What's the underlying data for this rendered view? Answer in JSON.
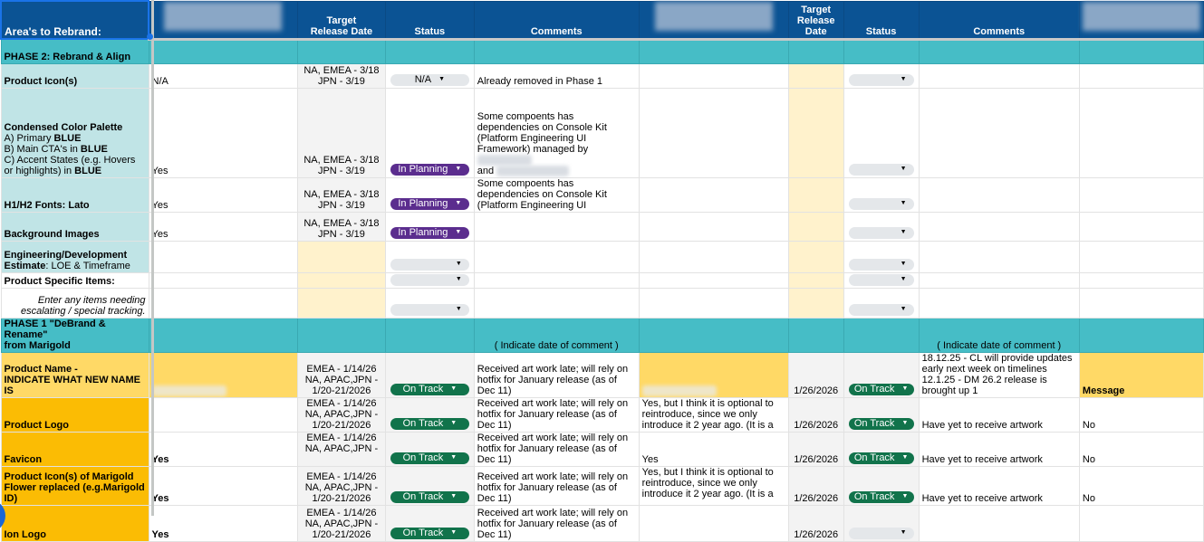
{
  "colors": {
    "header": "#0b5394",
    "phase": "#46bdc6",
    "area": "#c0e4e6",
    "in_planning": "#5b2d8e",
    "on_track": "#11734b",
    "na": "#e4e7ea",
    "yellow": "#ffd966",
    "orange": "#fbbc04",
    "light_yellow": "#fff2cc"
  },
  "header": [
    {
      "text": "Area's to Rebrand:"
    },
    {
      "blurred": true
    },
    {
      "text": "Target\nRelease Date"
    },
    {
      "text": "Status"
    },
    {
      "text": "Comments"
    },
    {
      "blurred": true
    },
    {
      "text": "Target\nRelease\nDate"
    },
    {
      "text": "Status"
    },
    {
      "text": "Comments"
    },
    {
      "blurred": true
    }
  ],
  "rows": [
    {
      "type": "phase",
      "cells": [
        {
          "text": "PHASE 2: Rebrand & Align"
        },
        {},
        {},
        {},
        {},
        {},
        {},
        {},
        {},
        {}
      ]
    },
    {
      "cells": [
        {
          "text": "Product Icon(s)",
          "fill": "a"
        },
        {
          "text": "N/A"
        },
        {
          "text": "NA, EMEA - 3/18\nJPN -  3/19",
          "fill": "gray",
          "align": "center"
        },
        {
          "status": "N/A"
        },
        {
          "text": "Already removed in Phase 1"
        },
        {},
        {
          "fill": "ylight"
        },
        {
          "status": ""
        },
        {},
        {}
      ]
    },
    {
      "cells": [
        {
          "segments": [
            {
              "t": "Condensed Color Palette\n",
              "b": true
            },
            {
              "t": "A) Primary "
            },
            {
              "t": "BLUE",
              "b": true
            },
            {
              "t": "\nB) Main CTA's in "
            },
            {
              "t": "BLUE",
              "b": true
            },
            {
              "t": "\nC) Accent States (e.g. Hovers or highlights) in "
            },
            {
              "t": "BLUE",
              "b": true
            }
          ],
          "fill": "a"
        },
        {
          "text": " Yes"
        },
        {
          "text": "NA, EMEA - 3/18\nJPN -  3/19",
          "fill": "gray",
          "align": "center"
        },
        {
          "status": "In Planning"
        },
        {
          "text": "Some compoents has dependencies on Console Kit (Platform Engineering UI Framework) managed by ",
          "blurAfter": true,
          "tail": "\nand ",
          "blurTail": true
        },
        {},
        {
          "fill": "ylight"
        },
        {
          "status": ""
        },
        {},
        {}
      ]
    },
    {
      "cells": [
        {
          "text": "H1/H2 Fonts: Lato",
          "fill": "a"
        },
        {
          "text": "Yes"
        },
        {
          "text": "NA, EMEA - 3/18\nJPN -  3/19",
          "fill": "gray",
          "align": "center"
        },
        {
          "status": "In Planning"
        },
        {
          "text": "Some compoents has dependencies on Console Kit (Platform Engineering UI"
        },
        {},
        {
          "fill": "ylight"
        },
        {
          "status": ""
        },
        {},
        {}
      ]
    },
    {
      "cells": [
        {
          "text": "Background Images",
          "fill": "a"
        },
        {
          "text": "Yes"
        },
        {
          "text": "NA, EMEA - 3/18\nJPN -  3/19",
          "fill": "gray",
          "align": "center"
        },
        {
          "status": "In Planning"
        },
        {},
        {},
        {
          "fill": "ylight"
        },
        {
          "status": ""
        },
        {},
        {}
      ]
    },
    {
      "cells": [
        {
          "segments": [
            {
              "t": "Engineering/Development\nEstimate",
              "b": true
            },
            {
              "t": ": LOE & Timeframe"
            }
          ],
          "fill": "a"
        },
        {},
        {
          "fill": "ylight"
        },
        {
          "status": ""
        },
        {},
        {},
        {
          "fill": "ylight"
        },
        {
          "status": ""
        },
        {},
        {}
      ]
    },
    {
      "cells": [
        {
          "text": "Product Specific Items:",
          "bold": true
        },
        {},
        {
          "fill": "ylight"
        },
        {
          "status": ""
        },
        {},
        {},
        {
          "fill": "ylight"
        },
        {
          "status": ""
        },
        {},
        {}
      ]
    },
    {
      "cells": [
        {
          "text": "Enter any items needing escalating / special tracking.",
          "italic": true
        },
        {},
        {
          "fill": "ylight"
        },
        {
          "status": ""
        },
        {},
        {},
        {
          "fill": "ylight"
        },
        {
          "status": ""
        },
        {},
        {}
      ]
    },
    {
      "type": "phase",
      "cells": [
        {
          "text": "PHASE 1 \"DeBrand & Rename\"\nfrom Marigold"
        },
        {},
        {},
        {},
        {
          "text": "( Indicate date of comment )",
          "align": "center",
          "normal": true
        },
        {},
        {},
        {},
        {
          "text": "( Indicate date of comment )",
          "align": "center",
          "normal": true
        },
        {}
      ]
    },
    {
      "cells": [
        {
          "text": "Product Name -\nINDICATE WHAT NEW NAME IS",
          "fill": "y",
          "bold": true
        },
        {
          "fill": "y",
          "blurOnly": true
        },
        {
          "text": "EMEA - 1/14/26\nNA, APAC,JPN -\n1/20-21/2026",
          "fill": "gray",
          "align": "center"
        },
        {
          "status": "On Track",
          "fill": "gray"
        },
        {
          "text": "Received art work late; will rely on hotfix for January release (as of Dec 11)"
        },
        {
          "fill": "y",
          "blurOnly": true
        },
        {
          "text": "1/26/2026",
          "fill": "gray",
          "align": "center"
        },
        {
          "status": "On Track",
          "fill": "gray"
        },
        {
          "text": "18.12.25 - CL will provide updates early next week on timelines\n12.1.25 - DM 26.2 release is brought up 1",
          "top": true
        },
        {
          "text": "Message",
          "fill": "y",
          "bold": true
        }
      ]
    },
    {
      "cells": [
        {
          "text": "Product Logo",
          "fill": "o",
          "bold": true
        },
        {},
        {
          "text": "EMEA - 1/14/26\nNA, APAC,JPN -\n1/20-21/2026",
          "fill": "gray",
          "align": "center"
        },
        {
          "status": "On Track",
          "fill": "gray"
        },
        {
          "text": "Received art work late; will rely on hotfix for January release (as of Dec 11)"
        },
        {
          "text": "Yes, but I think it is optional to reintroduce, since we only introduce it 2 year ago. (It is a",
          "top": true
        },
        {
          "text": "1/26/2026",
          "fill": "gray",
          "align": "center"
        },
        {
          "status": "On Track",
          "fill": "gray"
        },
        {
          "text": "Have yet to receive artwork"
        },
        {
          "text": "No"
        }
      ]
    },
    {
      "cells": [
        {
          "text": "Favicon",
          "fill": "o",
          "bold": true
        },
        {
          "text": "Yes",
          "bold": true
        },
        {
          "text": "EMEA - 1/14/26\nNA, APAC,JPN -",
          "fill": "gray",
          "align": "center",
          "top": true
        },
        {
          "status": "On Track",
          "fill": "gray"
        },
        {
          "text": "Received art work late; will rely on hotfix for January release (as of Dec 11)"
        },
        {
          "text": "Yes"
        },
        {
          "text": "1/26/2026",
          "fill": "gray",
          "align": "center"
        },
        {
          "status": "On Track",
          "fill": "gray"
        },
        {
          "text": "Have yet to receive artwork"
        },
        {
          "text": "No"
        }
      ]
    },
    {
      "cells": [
        {
          "text": "Product Icon(s) of Marigold Flower replaced (e.g.Marigold ID)",
          "fill": "o",
          "bold": true
        },
        {
          "text": "Yes",
          "bold": true
        },
        {
          "text": "EMEA - 1/14/26\nNA, APAC,JPN -\n1/20-21/2026",
          "fill": "gray",
          "align": "center"
        },
        {
          "status": "On Track",
          "fill": "gray"
        },
        {
          "text": "Received art work late; will rely on hotfix for January release (as of Dec 11)"
        },
        {
          "text": "Yes, but I think it is optional to reintroduce, since we only introduce it 2 year ago. (It is a",
          "top": true
        },
        {
          "text": "1/26/2026",
          "fill": "gray",
          "align": "center"
        },
        {
          "status": "On Track",
          "fill": "gray"
        },
        {
          "text": "Have yet to receive artwork"
        },
        {
          "text": "No"
        }
      ]
    },
    {
      "cells": [
        {
          "text": "Ion Logo",
          "fill": "o",
          "bold": true
        },
        {
          "text": "Yes",
          "bold": true
        },
        {
          "text": "EMEA - 1/14/26\nNA, APAC,JPN -\n1/20-21/2026",
          "fill": "gray",
          "align": "center"
        },
        {
          "status": "On Track",
          "fill": "gray"
        },
        {
          "text": "Received art work late; will rely on hotfix for January release (as of Dec 11)"
        },
        {},
        {
          "text": "1/26/2026",
          "fill": "gray",
          "align": "center"
        },
        {
          "status": "",
          "fill": "gray"
        },
        {},
        {}
      ]
    }
  ]
}
